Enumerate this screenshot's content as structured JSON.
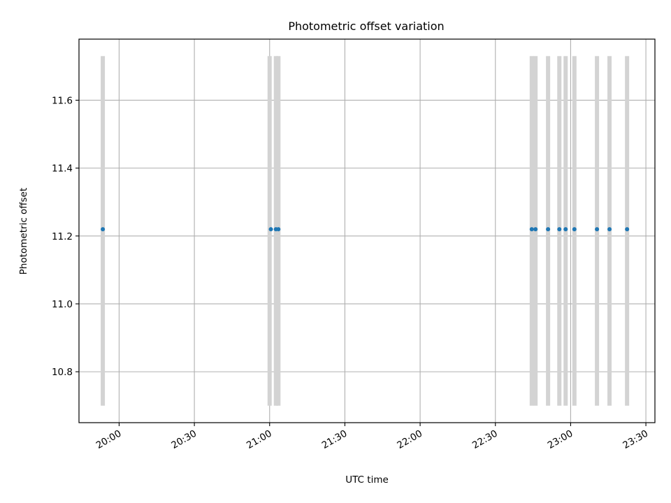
{
  "chart_data": {
    "type": "scatter",
    "title": "Photometric offset variation",
    "xlabel": "UTC time",
    "ylabel": "Photometric offset",
    "x_ticks": [
      "20:00",
      "20:30",
      "21:00",
      "21:30",
      "22:00",
      "22:30",
      "23:00",
      "23:30"
    ],
    "x_tick_minutes": [
      1200,
      1230,
      1260,
      1290,
      1320,
      1350,
      1380,
      1410
    ],
    "xlim": [
      "19:44",
      "23:34"
    ],
    "xlim_minutes": [
      1184.0,
      1413.6
    ],
    "y_ticks": [
      "10.8",
      "11.0",
      "11.2",
      "11.4",
      "11.6"
    ],
    "y_tick_values": [
      10.8,
      11.0,
      11.2,
      11.4,
      11.6
    ],
    "ylim": [
      10.65,
      11.78
    ],
    "grid": true,
    "points": [
      {
        "x": "19:53",
        "x_minutes": 1193.5,
        "y": 11.22
      },
      {
        "x": "21:00",
        "x_minutes": 1260.5,
        "y": 11.22
      },
      {
        "x": "21:02",
        "x_minutes": 1262.5,
        "y": 11.22
      },
      {
        "x": "21:03",
        "x_minutes": 1263.5,
        "y": 11.22
      },
      {
        "x": "22:44",
        "x_minutes": 1364.5,
        "y": 11.22
      },
      {
        "x": "22:46",
        "x_minutes": 1366.0,
        "y": 11.22
      },
      {
        "x": "22:51",
        "x_minutes": 1371.0,
        "y": 11.22
      },
      {
        "x": "22:55",
        "x_minutes": 1375.5,
        "y": 11.22
      },
      {
        "x": "22:58",
        "x_minutes": 1378.0,
        "y": 11.22
      },
      {
        "x": "23:01",
        "x_minutes": 1381.5,
        "y": 11.22
      },
      {
        "x": "23:10",
        "x_minutes": 1390.5,
        "y": 11.22
      },
      {
        "x": "23:15",
        "x_minutes": 1395.5,
        "y": 11.22
      },
      {
        "x": "23:22",
        "x_minutes": 1402.5,
        "y": 11.22
      }
    ],
    "range_bars": {
      "y_range": [
        10.7,
        11.73
      ],
      "x_minutes": [
        1193.5,
        1260.0,
        1262.5,
        1263.5,
        1364.5,
        1366.0,
        1371.0,
        1375.5,
        1378.0,
        1381.5,
        1390.5,
        1395.5,
        1402.5
      ]
    },
    "colors": {
      "points": "#1f77b4",
      "range_bars": "#d3d3d3",
      "grid": "#b0b0b0"
    }
  }
}
